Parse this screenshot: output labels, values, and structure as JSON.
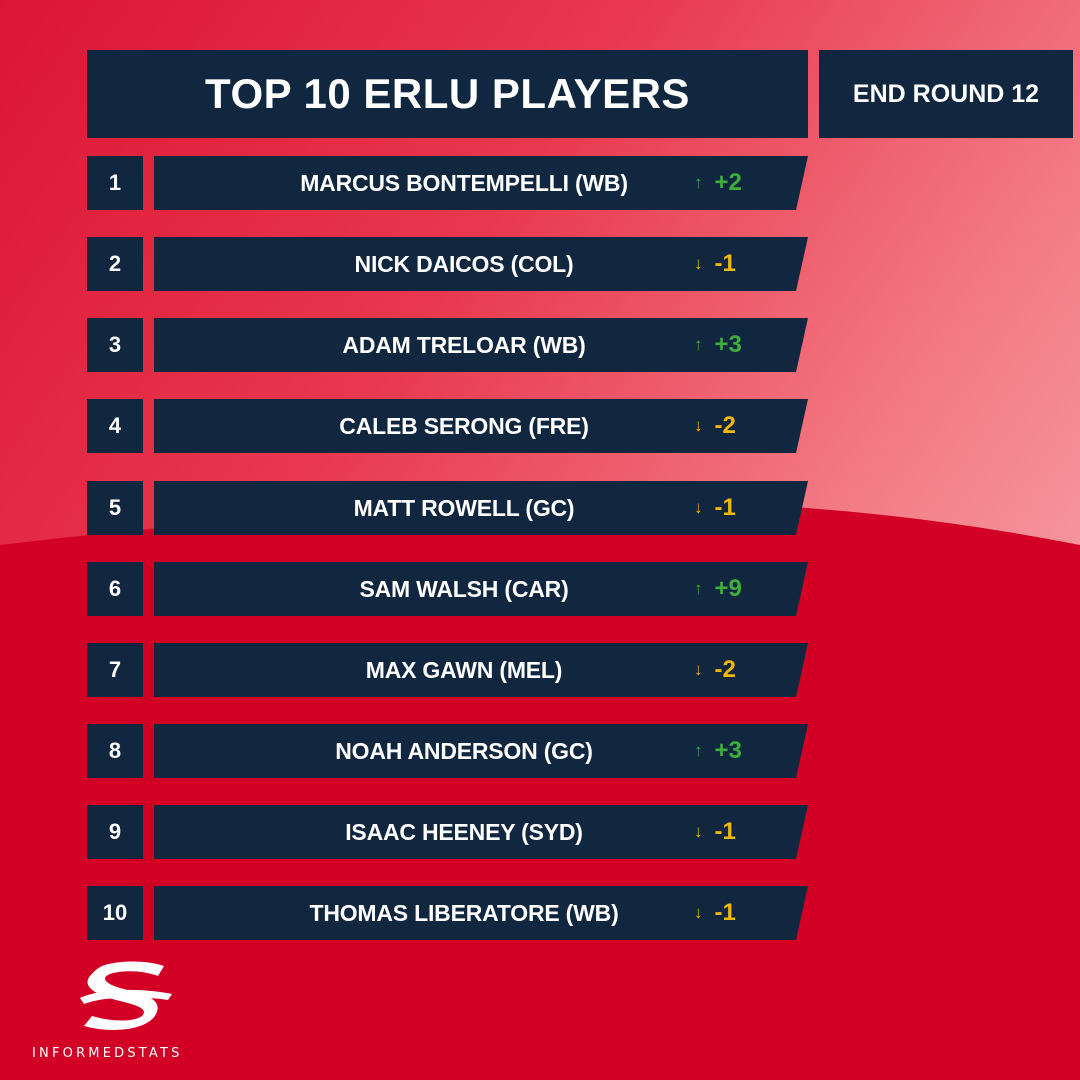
{
  "header": {
    "title": "TOP 10 ERLU PLAYERS",
    "round": "END ROUND 12"
  },
  "players": [
    {
      "rank": "1",
      "name": "MARCUS BONTEMPELLI (WB)",
      "arrow": "↑",
      "change": "+2",
      "direction": "up"
    },
    {
      "rank": "2",
      "name": "NICK DAICOS (COL)",
      "arrow": "↓",
      "change": "-1",
      "direction": "down"
    },
    {
      "rank": "3",
      "name": "ADAM TRELOAR (WB)",
      "arrow": "↑",
      "change": "+3",
      "direction": "up"
    },
    {
      "rank": "4",
      "name": "CALEB SERONG (FRE)",
      "arrow": "↓",
      "change": "-2",
      "direction": "down"
    },
    {
      "rank": "5",
      "name": "MATT ROWELL (GC)",
      "arrow": "↓",
      "change": "-1",
      "direction": "down"
    },
    {
      "rank": "6",
      "name": "SAM WALSH (CAR)",
      "arrow": "↑",
      "change": "+9",
      "direction": "up"
    },
    {
      "rank": "7",
      "name": "MAX GAWN (MEL)",
      "arrow": "↓",
      "change": "-2",
      "direction": "down"
    },
    {
      "rank": "8",
      "name": "NOAH ANDERSON (GC)",
      "arrow": "↑",
      "change": "+3",
      "direction": "up"
    },
    {
      "rank": "9",
      "name": "ISAAC HEENEY (SYD)",
      "arrow": "↓",
      "change": "-1",
      "direction": "down"
    },
    {
      "rank": "10",
      "name": "THOMAS LIBERATORE (WB)",
      "arrow": "↓",
      "change": "-1",
      "direction": "down"
    }
  ],
  "brand": {
    "name": "INFORMEDSTATS",
    "logo_icon": "informedstats-s-logo-icon"
  },
  "colors": {
    "navy": "#11263f",
    "red": "#d30025",
    "up": "#3fae3a",
    "down": "#f2b705"
  }
}
